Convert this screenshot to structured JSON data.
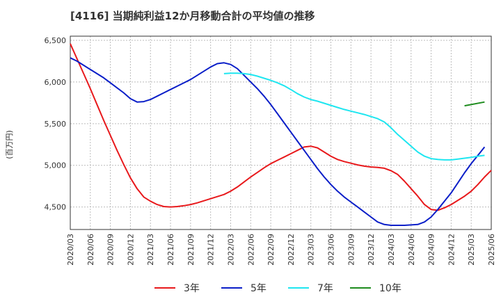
{
  "chart_data": {
    "type": "line",
    "title": "[4116]  当期純利益12か月移動合計の平均値の推移",
    "ylabel": "(百万円)",
    "xlabel": "",
    "ylim": [
      4230,
      6550
    ],
    "yticks": [
      4500,
      5000,
      5500,
      6000,
      6500
    ],
    "ytick_labels": [
      "4,500",
      "5,000",
      "5,500",
      "6,000",
      "6,500"
    ],
    "xlim": [
      "2020-03",
      "2025-06"
    ],
    "xtick_labels": [
      "2020/03",
      "2020/06",
      "2020/09",
      "2020/12",
      "2021/03",
      "2021/06",
      "2021/09",
      "2021/12",
      "2022/03",
      "2022/06",
      "2022/09",
      "2022/12",
      "2023/03",
      "2023/06",
      "2023/09",
      "2023/12",
      "2024/03",
      "2024/06",
      "2024/09",
      "2024/12",
      "2025/03",
      "2025/06"
    ],
    "grid": true,
    "legend_position": "bottom",
    "series": [
      {
        "name": "3年",
        "color": "#e8191c",
        "points": [
          [
            "2020-03",
            6460
          ],
          [
            "2020-04",
            6280
          ],
          [
            "2020-05",
            6100
          ],
          [
            "2020-06",
            5920
          ],
          [
            "2020-07",
            5730
          ],
          [
            "2020-08",
            5540
          ],
          [
            "2020-09",
            5360
          ],
          [
            "2020-10",
            5180
          ],
          [
            "2020-11",
            5010
          ],
          [
            "2020-12",
            4850
          ],
          [
            "2021-01",
            4720
          ],
          [
            "2021-02",
            4620
          ],
          [
            "2021-03",
            4570
          ],
          [
            "2021-04",
            4530
          ],
          [
            "2021-05",
            4505
          ],
          [
            "2021-06",
            4500
          ],
          [
            "2021-07",
            4505
          ],
          [
            "2021-08",
            4515
          ],
          [
            "2021-09",
            4530
          ],
          [
            "2021-10",
            4550
          ],
          [
            "2021-11",
            4575
          ],
          [
            "2021-12",
            4600
          ],
          [
            "2022-01",
            4625
          ],
          [
            "2022-02",
            4650
          ],
          [
            "2022-03",
            4690
          ],
          [
            "2022-04",
            4740
          ],
          [
            "2022-05",
            4800
          ],
          [
            "2022-06",
            4860
          ],
          [
            "2022-07",
            4915
          ],
          [
            "2022-08",
            4970
          ],
          [
            "2022-09",
            5020
          ],
          [
            "2022-10",
            5060
          ],
          [
            "2022-11",
            5100
          ],
          [
            "2022-12",
            5140
          ],
          [
            "2023-01",
            5180
          ],
          [
            "2023-02",
            5220
          ],
          [
            "2023-03",
            5230
          ],
          [
            "2023-04",
            5210
          ],
          [
            "2023-05",
            5160
          ],
          [
            "2023-06",
            5110
          ],
          [
            "2023-07",
            5070
          ],
          [
            "2023-08",
            5045
          ],
          [
            "2023-09",
            5025
          ],
          [
            "2023-10",
            5005
          ],
          [
            "2023-11",
            4990
          ],
          [
            "2023-12",
            4980
          ],
          [
            "2024-01",
            4975
          ],
          [
            "2024-02",
            4965
          ],
          [
            "2024-03",
            4935
          ],
          [
            "2024-04",
            4890
          ],
          [
            "2024-05",
            4810
          ],
          [
            "2024-06",
            4720
          ],
          [
            "2024-07",
            4630
          ],
          [
            "2024-08",
            4530
          ],
          [
            "2024-09",
            4470
          ],
          [
            "2024-10",
            4460
          ],
          [
            "2024-11",
            4490
          ],
          [
            "2024-12",
            4530
          ],
          [
            "2025-01",
            4580
          ],
          [
            "2025-02",
            4630
          ],
          [
            "2025-03",
            4690
          ],
          [
            "2025-04",
            4770
          ],
          [
            "2025-05",
            4860
          ],
          [
            "2025-06",
            4940
          ]
        ]
      },
      {
        "name": "5年",
        "color": "#0a1ec8",
        "points": [
          [
            "2020-03",
            6290
          ],
          [
            "2020-04",
            6250
          ],
          [
            "2020-05",
            6200
          ],
          [
            "2020-06",
            6150
          ],
          [
            "2020-07",
            6100
          ],
          [
            "2020-08",
            6050
          ],
          [
            "2020-09",
            5990
          ],
          [
            "2020-10",
            5930
          ],
          [
            "2020-11",
            5870
          ],
          [
            "2020-12",
            5800
          ],
          [
            "2021-01",
            5760
          ],
          [
            "2021-02",
            5765
          ],
          [
            "2021-03",
            5790
          ],
          [
            "2021-04",
            5830
          ],
          [
            "2021-05",
            5870
          ],
          [
            "2021-06",
            5910
          ],
          [
            "2021-07",
            5950
          ],
          [
            "2021-08",
            5990
          ],
          [
            "2021-09",
            6030
          ],
          [
            "2021-10",
            6080
          ],
          [
            "2021-11",
            6130
          ],
          [
            "2021-12",
            6180
          ],
          [
            "2022-01",
            6220
          ],
          [
            "2022-02",
            6230
          ],
          [
            "2022-03",
            6210
          ],
          [
            "2022-04",
            6160
          ],
          [
            "2022-05",
            6080
          ],
          [
            "2022-06",
            6000
          ],
          [
            "2022-07",
            5920
          ],
          [
            "2022-08",
            5830
          ],
          [
            "2022-09",
            5730
          ],
          [
            "2022-10",
            5620
          ],
          [
            "2022-11",
            5510
          ],
          [
            "2022-12",
            5400
          ],
          [
            "2023-01",
            5290
          ],
          [
            "2023-02",
            5180
          ],
          [
            "2023-03",
            5070
          ],
          [
            "2023-04",
            4960
          ],
          [
            "2023-05",
            4860
          ],
          [
            "2023-06",
            4770
          ],
          [
            "2023-07",
            4690
          ],
          [
            "2023-08",
            4620
          ],
          [
            "2023-09",
            4560
          ],
          [
            "2023-10",
            4500
          ],
          [
            "2023-11",
            4440
          ],
          [
            "2023-12",
            4380
          ],
          [
            "2024-01",
            4320
          ],
          [
            "2024-02",
            4290
          ],
          [
            "2024-03",
            4280
          ],
          [
            "2024-04",
            4280
          ],
          [
            "2024-05",
            4280
          ],
          [
            "2024-06",
            4285
          ],
          [
            "2024-07",
            4290
          ],
          [
            "2024-08",
            4320
          ],
          [
            "2024-09",
            4380
          ],
          [
            "2024-10",
            4470
          ],
          [
            "2024-11",
            4570
          ],
          [
            "2024-12",
            4670
          ],
          [
            "2025-01",
            4790
          ],
          [
            "2025-02",
            4910
          ],
          [
            "2025-03",
            5020
          ],
          [
            "2025-04",
            5120
          ],
          [
            "2025-05",
            5220
          ]
        ]
      },
      {
        "name": "7年",
        "color": "#1ee6f0",
        "points": [
          [
            "2022-02",
            6100
          ],
          [
            "2022-03",
            6105
          ],
          [
            "2022-04",
            6105
          ],
          [
            "2022-05",
            6100
          ],
          [
            "2022-06",
            6090
          ],
          [
            "2022-07",
            6070
          ],
          [
            "2022-08",
            6045
          ],
          [
            "2022-09",
            6020
          ],
          [
            "2022-10",
            5990
          ],
          [
            "2022-11",
            5955
          ],
          [
            "2022-12",
            5910
          ],
          [
            "2023-01",
            5860
          ],
          [
            "2023-02",
            5820
          ],
          [
            "2023-03",
            5790
          ],
          [
            "2023-04",
            5770
          ],
          [
            "2023-05",
            5745
          ],
          [
            "2023-06",
            5720
          ],
          [
            "2023-07",
            5695
          ],
          [
            "2023-08",
            5670
          ],
          [
            "2023-09",
            5650
          ],
          [
            "2023-10",
            5630
          ],
          [
            "2023-11",
            5610
          ],
          [
            "2023-12",
            5585
          ],
          [
            "2024-01",
            5560
          ],
          [
            "2024-02",
            5520
          ],
          [
            "2024-03",
            5450
          ],
          [
            "2024-04",
            5370
          ],
          [
            "2024-05",
            5300
          ],
          [
            "2024-06",
            5230
          ],
          [
            "2024-07",
            5160
          ],
          [
            "2024-08",
            5110
          ],
          [
            "2024-09",
            5080
          ],
          [
            "2024-10",
            5070
          ],
          [
            "2024-11",
            5065
          ],
          [
            "2024-12",
            5065
          ],
          [
            "2025-01",
            5075
          ],
          [
            "2025-02",
            5085
          ],
          [
            "2025-03",
            5095
          ],
          [
            "2025-04",
            5110
          ],
          [
            "2025-05",
            5120
          ]
        ]
      },
      {
        "name": "10年",
        "color": "#1e8c1e",
        "points": [
          [
            "2025-02",
            5715
          ],
          [
            "2025-05",
            5760
          ]
        ]
      }
    ]
  }
}
